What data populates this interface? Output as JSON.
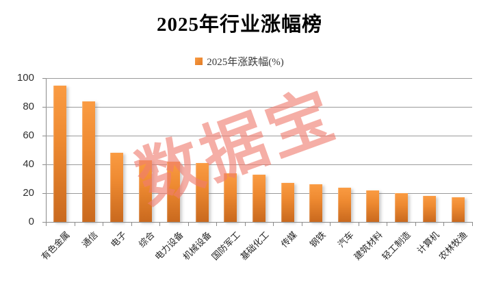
{
  "title": "2025年行业涨幅榜",
  "legend": {
    "label": "2025年涨跌幅(%)",
    "marker_color": "#ED8A2F"
  },
  "watermark": {
    "text": "数据宝",
    "color": "#EF7C70"
  },
  "colors": {
    "bar_top": "#FA9B42",
    "bar_bottom": "#C9691E",
    "gridline": "#9A9A9A",
    "axis": "#8A8A8A",
    "title_text": "#000000",
    "label_text": "#2F2F2F"
  },
  "chart_data": {
    "type": "bar",
    "title": "2025年行业涨幅榜",
    "series_name": "2025年涨跌幅(%)",
    "categories": [
      "有色金属",
      "通信",
      "电子",
      "综合",
      "电力设备",
      "机械设备",
      "国防军工",
      "基础化工",
      "传媒",
      "钢铁",
      "汽车",
      "建筑材料",
      "轻工制造",
      "计算机",
      "农林牧渔"
    ],
    "values": [
      95,
      84,
      48,
      43,
      42,
      41,
      34,
      33,
      27,
      26,
      24,
      22,
      20,
      18,
      17
    ],
    "xlabel": "",
    "ylabel": "",
    "ylim": [
      0,
      100
    ],
    "yticks": [
      0,
      20,
      40,
      60,
      80,
      100
    ],
    "grid": true,
    "legend_position": "top-center",
    "bar_orientation": "vertical"
  }
}
